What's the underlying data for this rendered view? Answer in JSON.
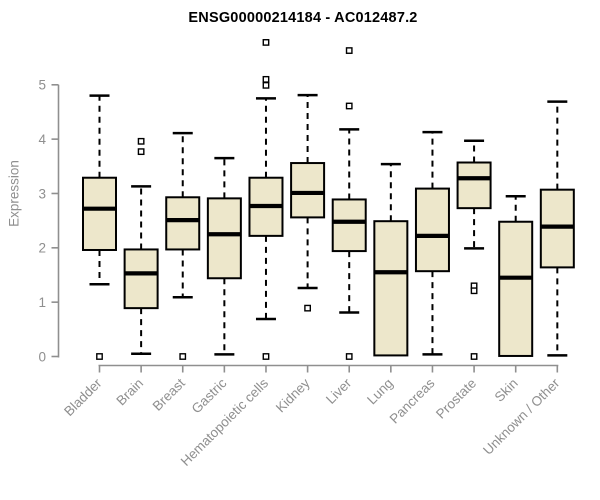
{
  "chart_data": {
    "type": "boxplot",
    "title": "ENSG00000214184 - AC012487.2",
    "ylabel": "Expression",
    "xlabel": "",
    "ylim": [
      0,
      5
    ],
    "yticks": [
      0,
      1,
      2,
      3,
      4,
      5
    ],
    "grid": false,
    "legend": "none",
    "categories": [
      "Bladder",
      "Brain",
      "Breast",
      "Gastric",
      "Hematopoietic cells",
      "Kidney",
      "Liver",
      "Lung",
      "Pancreas",
      "Prostate",
      "Skin",
      "Unknown / Other"
    ],
    "boxes": [
      {
        "label": "Bladder",
        "low": 1.33,
        "q1": 1.96,
        "median": 2.72,
        "q3": 3.29,
        "high": 4.8,
        "outliers": [
          0
        ]
      },
      {
        "label": "Brain",
        "low": 0.05,
        "q1": 0.89,
        "median": 1.53,
        "q3": 1.97,
        "high": 3.13,
        "outliers": [
          3.96,
          3.77
        ]
      },
      {
        "label": "Breast",
        "low": 1.09,
        "q1": 1.97,
        "median": 2.51,
        "q3": 2.93,
        "high": 4.11,
        "outliers": [
          0
        ]
      },
      {
        "label": "Gastric",
        "low": 0.04,
        "q1": 1.44,
        "median": 2.25,
        "q3": 2.91,
        "high": 3.65,
        "outliers": []
      },
      {
        "label": "Hematopoietic cells",
        "low": 0.69,
        "q1": 2.22,
        "median": 2.77,
        "q3": 3.29,
        "high": 4.75,
        "outliers": [
          5.78,
          5.1,
          4.99,
          0
        ]
      },
      {
        "label": "Kidney",
        "low": 1.26,
        "q1": 2.56,
        "median": 3.01,
        "q3": 3.56,
        "high": 4.81,
        "outliers": [
          0.89
        ]
      },
      {
        "label": "Liver",
        "low": 0.81,
        "q1": 1.94,
        "median": 2.48,
        "q3": 2.89,
        "high": 4.18,
        "outliers": [
          5.63,
          4.61,
          0
        ]
      },
      {
        "label": "Lung",
        "low": 0.02,
        "q1": 0.02,
        "median": 1.55,
        "q3": 2.49,
        "high": 3.54,
        "outliers": []
      },
      {
        "label": "Pancreas",
        "low": 0.04,
        "q1": 1.57,
        "median": 2.22,
        "q3": 3.09,
        "high": 4.13,
        "outliers": []
      },
      {
        "label": "Prostate",
        "low": 1.99,
        "q1": 2.73,
        "median": 3.28,
        "q3": 3.57,
        "high": 3.97,
        "outliers": [
          1.3,
          1.21,
          0
        ]
      },
      {
        "label": "Skin",
        "low": 0.01,
        "q1": 0.01,
        "median": 1.45,
        "q3": 2.48,
        "high": 2.95,
        "outliers": []
      },
      {
        "label": "Unknown / Other",
        "low": 0.02,
        "q1": 1.64,
        "median": 2.39,
        "q3": 3.07,
        "high": 4.69,
        "outliers": []
      }
    ]
  },
  "colors": {
    "box_fill": "#EDE7CB",
    "box_border": "#000000",
    "median": "#000000",
    "whisker": "#000000",
    "outlier_fill": "#FFFFFF",
    "axis": "#8F8F8F",
    "tick_label": "#8F8F8F",
    "title": "#000000",
    "background": "#FFFFFF"
  }
}
